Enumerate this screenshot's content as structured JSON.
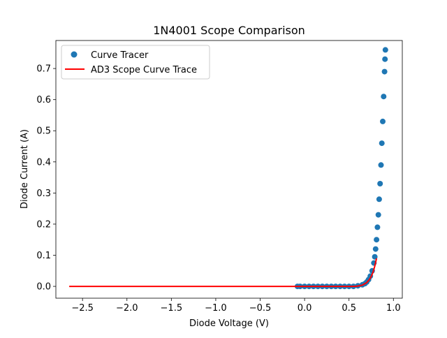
{
  "chart_data": {
    "type": "scatter",
    "title": "1N4001 Scope Comparison",
    "xlabel": "Diode Voltage (V)",
    "ylabel": "Diode Current (A)",
    "xlim": [
      -2.8,
      1.1
    ],
    "ylim": [
      -0.038,
      0.79
    ],
    "x_ticks": [
      -2.5,
      -2.0,
      -1.5,
      -1.0,
      -0.5,
      0.0,
      0.5,
      1.0
    ],
    "x_tick_labels": [
      "−2.5",
      "−2.0",
      "−1.5",
      "−1.0",
      "−0.5",
      "0.0",
      "0.5",
      "1.0"
    ],
    "y_ticks": [
      0.0,
      0.1,
      0.2,
      0.3,
      0.4,
      0.5,
      0.6,
      0.7
    ],
    "y_tick_labels": [
      "0.0",
      "0.1",
      "0.2",
      "0.3",
      "0.4",
      "0.5",
      "0.6",
      "0.7"
    ],
    "grid": false,
    "legend_position": "upper-left",
    "series": [
      {
        "name": "Curve Tracer",
        "kind": "scatter",
        "color": "#1f77b4",
        "points": [
          [
            -0.08,
            0.0
          ],
          [
            -0.05,
            0.0
          ],
          [
            0.0,
            0.0
          ],
          [
            0.05,
            0.0
          ],
          [
            0.1,
            0.0
          ],
          [
            0.15,
            0.0
          ],
          [
            0.2,
            0.0
          ],
          [
            0.25,
            0.0
          ],
          [
            0.3,
            0.0
          ],
          [
            0.35,
            0.0
          ],
          [
            0.4,
            0.0
          ],
          [
            0.45,
            0.0
          ],
          [
            0.5,
            0.0
          ],
          [
            0.55,
            0.0
          ],
          [
            0.6,
            0.002
          ],
          [
            0.65,
            0.005
          ],
          [
            0.68,
            0.009
          ],
          [
            0.7,
            0.014
          ],
          [
            0.72,
            0.022
          ],
          [
            0.74,
            0.033
          ],
          [
            0.76,
            0.05
          ],
          [
            0.78,
            0.075
          ],
          [
            0.79,
            0.095
          ],
          [
            0.8,
            0.12
          ],
          [
            0.81,
            0.15
          ],
          [
            0.82,
            0.19
          ],
          [
            0.83,
            0.23
          ],
          [
            0.84,
            0.28
          ],
          [
            0.85,
            0.33
          ],
          [
            0.86,
            0.39
          ],
          [
            0.87,
            0.46
          ],
          [
            0.88,
            0.53
          ],
          [
            0.89,
            0.61
          ],
          [
            0.9,
            0.69
          ],
          [
            0.905,
            0.73
          ],
          [
            0.91,
            0.76
          ]
        ]
      },
      {
        "name": "AD3 Scope Curve Trace",
        "kind": "line",
        "color": "#ff0000",
        "points": [
          [
            -2.65,
            0.0
          ],
          [
            -0.1,
            0.0
          ],
          [
            0.0,
            0.0
          ],
          [
            0.55,
            0.0
          ],
          [
            0.6,
            0.001
          ],
          [
            0.65,
            0.004
          ],
          [
            0.7,
            0.012
          ],
          [
            0.73,
            0.022
          ],
          [
            0.75,
            0.032
          ],
          [
            0.77,
            0.045
          ],
          [
            0.79,
            0.065
          ],
          [
            0.81,
            0.09
          ]
        ]
      }
    ]
  }
}
